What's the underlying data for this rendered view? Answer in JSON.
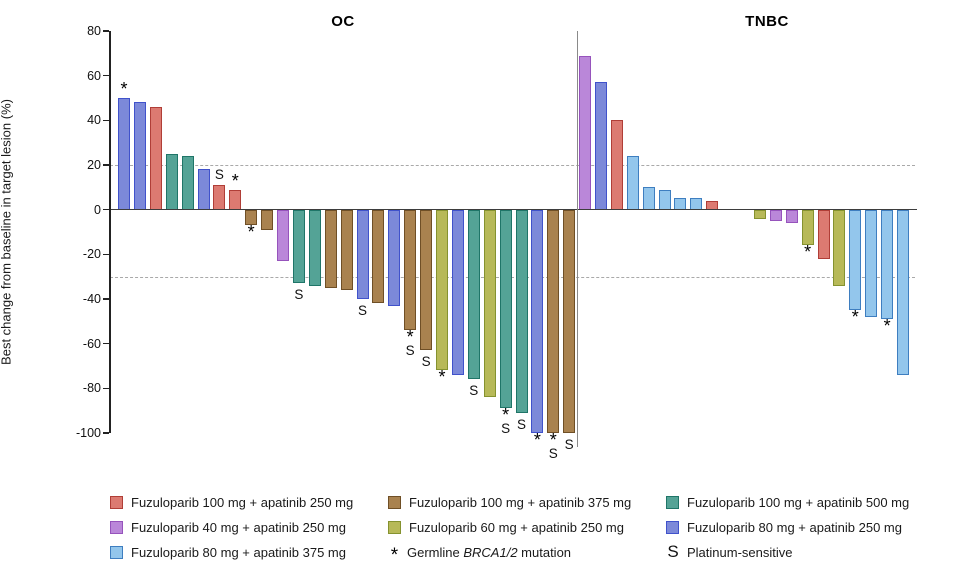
{
  "groups": {
    "fz100_ap250": {
      "label": "Fuzuloparib 100 mg + apatinib 250 mg",
      "fill": "#DC7A71",
      "border": "#B03E37"
    },
    "fz40_ap250": {
      "label": "Fuzuloparib 40 mg + apatinib 250 mg",
      "fill": "#BA87D9",
      "border": "#9653BC"
    },
    "fz80_ap375": {
      "label": "Fuzuloparib 80 mg + apatinib 375 mg",
      "fill": "#93C6EC",
      "border": "#3E7EC0"
    },
    "fz100_ap375": {
      "label": "Fuzuloparib 100 mg + apatinib 375 mg",
      "fill": "#A9824F",
      "border": "#6F4F26"
    },
    "fz60_ap250": {
      "label": "Fuzuloparib 60 mg + apatinib 250 mg",
      "fill": "#B7B958",
      "border": "#85922F"
    },
    "fz100_ap500": {
      "label": "Fuzuloparib 100 mg + apatinib 500 mg",
      "fill": "#54A396",
      "border": "#1F7568"
    },
    "fz80_ap250": {
      "label": "Fuzuloparib 80 mg + apatinib 250 mg",
      "fill": "#7C89D9",
      "border": "#4052CB"
    }
  },
  "chart_data": {
    "type": "bar",
    "subtype": "waterfall",
    "ylabel": "Best change from baseline in target lesion (%)",
    "ylim": [
      -100,
      80
    ],
    "yticks": [
      80,
      60,
      40,
      20,
      0,
      -20,
      -40,
      -60,
      -80,
      -100
    ],
    "reference_lines": [
      20,
      -30
    ],
    "grid": "dashed-reference-only",
    "marker_meanings": {
      "*": "Germline BRCA1/2 mutation",
      "S": "Platinum-sensitive"
    },
    "sections": [
      {
        "name": "OC",
        "bars": [
          {
            "value": 50,
            "group": "fz80_ap250",
            "marks": [
              "*"
            ]
          },
          {
            "value": 48,
            "group": "fz80_ap250",
            "marks": []
          },
          {
            "value": 46,
            "group": "fz100_ap250",
            "marks": []
          },
          {
            "value": 25,
            "group": "fz100_ap500",
            "marks": []
          },
          {
            "value": 24,
            "group": "fz100_ap500",
            "marks": []
          },
          {
            "value": 18,
            "group": "fz80_ap250",
            "marks": []
          },
          {
            "value": 11,
            "group": "fz100_ap250",
            "marks": [
              "S"
            ]
          },
          {
            "value": 9,
            "group": "fz100_ap250",
            "marks": [
              "*"
            ]
          },
          {
            "value": -7,
            "group": "fz100_ap375",
            "marks": [
              "*"
            ]
          },
          {
            "value": -9,
            "group": "fz100_ap375",
            "marks": []
          },
          {
            "value": -23,
            "group": "fz40_ap250",
            "marks": []
          },
          {
            "value": -33,
            "group": "fz100_ap500",
            "marks": [
              "S"
            ]
          },
          {
            "value": -34,
            "group": "fz100_ap500",
            "marks": []
          },
          {
            "value": -35,
            "group": "fz100_ap375",
            "marks": []
          },
          {
            "value": -36,
            "group": "fz100_ap375",
            "marks": []
          },
          {
            "value": -40,
            "group": "fz80_ap250",
            "marks": [
              "S"
            ]
          },
          {
            "value": -42,
            "group": "fz100_ap375",
            "marks": []
          },
          {
            "value": -43,
            "group": "fz80_ap250",
            "marks": []
          },
          {
            "value": -54,
            "group": "fz100_ap375",
            "marks": [
              "*",
              "S"
            ]
          },
          {
            "value": -63,
            "group": "fz100_ap375",
            "marks": [
              "S"
            ]
          },
          {
            "value": -72,
            "group": "fz60_ap250",
            "marks": [
              "*"
            ]
          },
          {
            "value": -74,
            "group": "fz80_ap250",
            "marks": []
          },
          {
            "value": -76,
            "group": "fz100_ap500",
            "marks": [
              "S"
            ]
          },
          {
            "value": -84,
            "group": "fz60_ap250",
            "marks": []
          },
          {
            "value": -89,
            "group": "fz100_ap500",
            "marks": [
              "*",
              "S"
            ]
          },
          {
            "value": -91,
            "group": "fz100_ap500",
            "marks": [
              "S"
            ]
          },
          {
            "value": -100,
            "group": "fz80_ap250",
            "marks": [
              "*"
            ]
          },
          {
            "value": -100,
            "group": "fz100_ap375",
            "marks": [
              "*",
              "S"
            ]
          },
          {
            "value": -100,
            "group": "fz100_ap375",
            "marks": [
              "S"
            ]
          }
        ]
      },
      {
        "name": "TNBC",
        "bars": [
          {
            "value": 69,
            "group": "fz40_ap250",
            "marks": [],
            "slot": 0
          },
          {
            "value": 57,
            "group": "fz80_ap250",
            "marks": [],
            "slot": 1
          },
          {
            "value": 40,
            "group": "fz100_ap250",
            "marks": [],
            "slot": 2
          },
          {
            "value": 24,
            "group": "fz80_ap375",
            "marks": [],
            "slot": 3
          },
          {
            "value": 10,
            "group": "fz80_ap375",
            "marks": [],
            "slot": 4
          },
          {
            "value": 9,
            "group": "fz80_ap375",
            "marks": [],
            "slot": 5
          },
          {
            "value": 5,
            "group": "fz80_ap375",
            "marks": [],
            "slot": 6
          },
          {
            "value": 5,
            "group": "fz80_ap375",
            "marks": [],
            "slot": 7
          },
          {
            "value": 4,
            "group": "fz100_ap250",
            "marks": [],
            "slot": 8
          },
          {
            "value": -4,
            "group": "fz60_ap250",
            "marks": [],
            "slot": 11
          },
          {
            "value": -5,
            "group": "fz40_ap250",
            "marks": [],
            "slot": 12
          },
          {
            "value": -6,
            "group": "fz40_ap250",
            "marks": [],
            "slot": 13
          },
          {
            "value": -16,
            "group": "fz60_ap250",
            "marks": [
              "*"
            ],
            "slot": 14
          },
          {
            "value": -22,
            "group": "fz100_ap250",
            "marks": [],
            "slot": 15
          },
          {
            "value": -34,
            "group": "fz60_ap250",
            "marks": [],
            "slot": 16
          },
          {
            "value": -45,
            "group": "fz80_ap375",
            "marks": [
              "*"
            ],
            "slot": 17
          },
          {
            "value": -48,
            "group": "fz80_ap375",
            "marks": [],
            "slot": 18
          },
          {
            "value": -49,
            "group": "fz80_ap375",
            "marks": [
              "*"
            ],
            "slot": 19
          },
          {
            "value": -74,
            "group": "fz80_ap375",
            "marks": [],
            "slot": 20
          }
        ]
      }
    ]
  },
  "legend": {
    "columns": [
      [
        {
          "swatch": "fz100_ap250",
          "label": "Fuzuloparib 100 mg + apatinib 250 mg"
        },
        {
          "swatch": "fz40_ap250",
          "label": "Fuzuloparib 40 mg + apatinib 250 mg"
        },
        {
          "swatch": "fz80_ap375",
          "label": "Fuzuloparib 80 mg + apatinib 375 mg"
        }
      ],
      [
        {
          "swatch": "fz100_ap375",
          "label": "Fuzuloparib 100 mg + apatinib 375 mg"
        },
        {
          "swatch": "fz60_ap250",
          "label": "Fuzuloparib 60 mg + apatinib 250 mg"
        },
        {
          "symbol": "*",
          "label_parts": {
            "pre": "Germline ",
            "italic": "BRCA1/2",
            "post": " mutation"
          }
        }
      ],
      [
        {
          "swatch": "fz100_ap500",
          "label": "Fuzuloparib 100 mg + apatinib 500 mg"
        },
        {
          "swatch": "fz80_ap250",
          "label": "Fuzuloparib 80 mg + apatinib 250 mg"
        },
        {
          "symbol": "S",
          "label": "Platinum-sensitive"
        }
      ]
    ]
  }
}
